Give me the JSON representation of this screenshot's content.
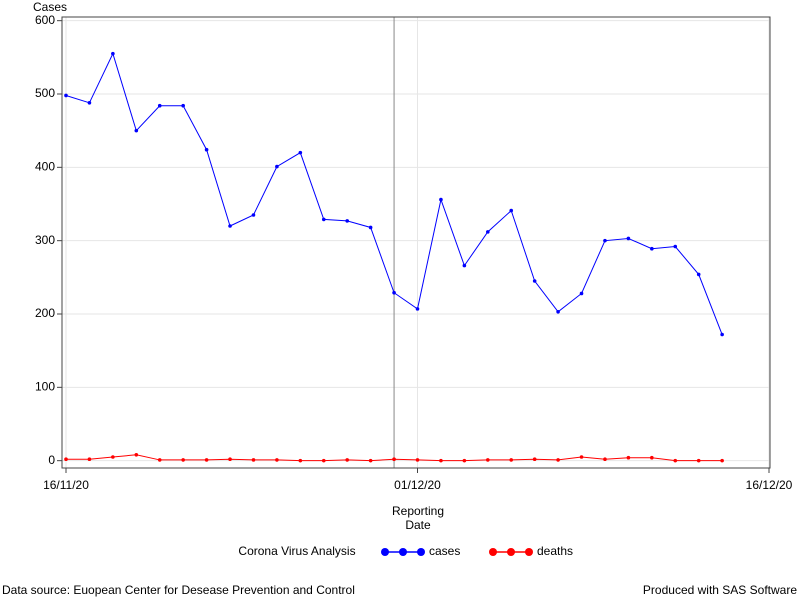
{
  "chart_data": {
    "type": "line",
    "ylabel": "Cases",
    "xlabel_lines": [
      "Reporting",
      "Date"
    ],
    "legend_title": "Corona Virus Analysis",
    "footnote_left": "Data source: Euopean Center for Desease Prevention and Control",
    "footnote_right": "Produced with SAS Software",
    "x": [
      "2020-11-16",
      "2020-11-17",
      "2020-11-18",
      "2020-11-19",
      "2020-11-20",
      "2020-11-21",
      "2020-11-22",
      "2020-11-23",
      "2020-11-24",
      "2020-11-25",
      "2020-11-26",
      "2020-11-27",
      "2020-11-28",
      "2020-11-29",
      "2020-11-30",
      "2020-12-01",
      "2020-12-02",
      "2020-12-03",
      "2020-12-04",
      "2020-12-05",
      "2020-12-06",
      "2020-12-07",
      "2020-12-08",
      "2020-12-09",
      "2020-12-10",
      "2020-12-11",
      "2020-12-12",
      "2020-12-13",
      "2020-12-14"
    ],
    "series": [
      {
        "name": "cases",
        "color": "#0000ff",
        "values": [
          498,
          488,
          555,
          450,
          484,
          484,
          424,
          320,
          335,
          401,
          420,
          329,
          327,
          318,
          229,
          207,
          356,
          266,
          312,
          341,
          245,
          203,
          228,
          300,
          303,
          289,
          292,
          254,
          172
        ]
      },
      {
        "name": "deaths",
        "color": "#ff0000",
        "values": [
          2,
          2,
          5,
          8,
          1,
          1,
          1,
          2,
          1,
          1,
          0,
          0,
          1,
          0,
          2,
          1,
          0,
          0,
          1,
          1,
          2,
          1,
          5,
          2,
          4,
          4,
          0,
          0,
          0
        ]
      }
    ],
    "xlim": [
      "2020-11-16",
      "2020-12-16"
    ],
    "xticks": [
      {
        "value": "2020-11-16",
        "label": "16/11/20"
      },
      {
        "value": "2020-12-01",
        "label": "01/12/20"
      },
      {
        "value": "2020-12-16",
        "label": "16/12/20"
      }
    ],
    "ylim": [
      -10,
      605
    ],
    "yticks": [
      0,
      100,
      200,
      300,
      400,
      500,
      600
    ],
    "refline": "2020-11-30",
    "grid": true
  }
}
